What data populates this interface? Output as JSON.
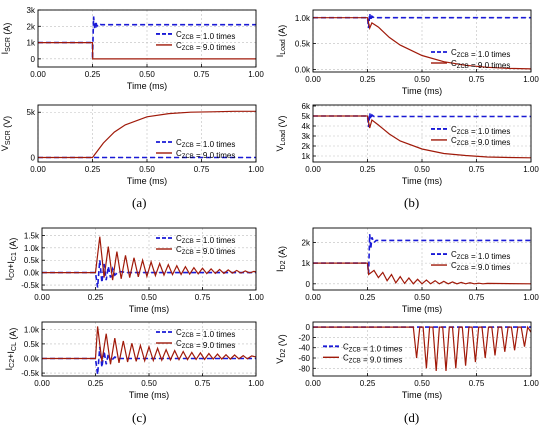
{
  "colors": {
    "dashed": "#1a1ad6",
    "solid": "#a01a0a",
    "axis": "#000000",
    "grid": "#bfbfbf"
  },
  "panel_labels": [
    "(a)",
    "(b)",
    "(c)",
    "(d)"
  ],
  "chart_data": [
    {
      "id": "a-top",
      "type": "line",
      "xlabel": "Time (ms)",
      "ylabel": "I_SCR (A)",
      "xlim": [
        0,
        1
      ],
      "ylim": [
        -0.5,
        3
      ],
      "xticks": [
        "0.00",
        "0.25",
        "0.50",
        "0.75",
        "1.00"
      ],
      "yticks": [
        {
          "v": 0,
          "t": "0"
        },
        {
          "v": 1,
          "t": "1k"
        },
        {
          "v": 2,
          "t": "2k"
        },
        {
          "v": 3,
          "t": "3k"
        }
      ],
      "legend": "right",
      "series": [
        {
          "name": "C_ZCB = 1.0 times",
          "style": "dashed",
          "x": [
            0,
            0.25,
            0.25,
            0.255,
            0.26,
            0.265,
            0.27,
            0.28,
            0.29,
            1
          ],
          "y": [
            1,
            1,
            0,
            2.6,
            1.8,
            2.3,
            2.0,
            2.15,
            2.1,
            2.1
          ]
        },
        {
          "name": "C_ZCB = 9.0 times",
          "style": "solid",
          "x": [
            0,
            0.25,
            0.251,
            1
          ],
          "y": [
            1,
            1,
            0,
            0
          ]
        }
      ]
    },
    {
      "id": "a-bottom",
      "type": "line",
      "xlabel": "Time (ms)",
      "ylabel": "V_SCR (V)",
      "xlim": [
        0,
        1
      ],
      "ylim": [
        -0.5,
        5.8
      ],
      "xticks": [
        "0.00",
        "0.25",
        "0.50",
        "0.75",
        "1.00"
      ],
      "yticks": [
        {
          "v": 0,
          "t": "0"
        },
        {
          "v": 5,
          "t": "5k"
        }
      ],
      "legend": "bottom-right",
      "series": [
        {
          "name": "C_ZCB = 1.0 times",
          "style": "dashed",
          "x": [
            0,
            1
          ],
          "y": [
            0,
            0
          ]
        },
        {
          "name": "C_ZCB = 9.0 times",
          "style": "solid",
          "x": [
            0,
            0.25,
            0.3,
            0.35,
            0.4,
            0.5,
            0.6,
            0.7,
            0.8,
            0.9,
            1
          ],
          "y": [
            0,
            0,
            1.6,
            2.8,
            3.6,
            4.5,
            4.85,
            5.0,
            5.05,
            5.1,
            5.1
          ]
        }
      ]
    },
    {
      "id": "b-top",
      "type": "line",
      "xlabel": "Time (ms)",
      "ylabel": "I_Load (A)",
      "xlim": [
        0,
        1
      ],
      "ylim": [
        -0.05,
        1.15
      ],
      "xticks": [
        "0.00",
        "0.25",
        "0.50",
        "0.75",
        "1.00"
      ],
      "yticks": [
        {
          "v": 0,
          "t": "0.0k"
        },
        {
          "v": 0.5,
          "t": "0.5k"
        },
        {
          "v": 1,
          "t": "1.0k"
        }
      ],
      "legend": "bottom-right",
      "series": [
        {
          "name": "C_ZCB = 1.0 times",
          "style": "dashed",
          "x": [
            0,
            0.25,
            0.255,
            0.26,
            0.265,
            0.27,
            0.28,
            1
          ],
          "y": [
            1,
            1,
            0.8,
            1.08,
            0.95,
            1.03,
            1,
            1
          ]
        },
        {
          "name": "C_ZCB = 9.0 times",
          "style": "solid",
          "x": [
            0,
            0.25,
            0.26,
            0.27,
            0.3,
            0.35,
            0.4,
            0.5,
            0.6,
            0.7,
            0.8,
            0.9,
            1
          ],
          "y": [
            1,
            1,
            0.8,
            0.9,
            0.82,
            0.62,
            0.47,
            0.27,
            0.15,
            0.08,
            0.04,
            0.02,
            0.01
          ]
        }
      ]
    },
    {
      "id": "b-bottom",
      "type": "line",
      "xlabel": "Time (ms)",
      "ylabel": "V_Load (V)",
      "xlim": [
        0,
        1
      ],
      "ylim": [
        0.4,
        6.1
      ],
      "xticks": [
        "0.00",
        "0.25",
        "0.50",
        "0.75",
        "1.00"
      ],
      "yticks": [
        {
          "v": 1,
          "t": "1k"
        },
        {
          "v": 2,
          "t": "2k"
        },
        {
          "v": 3,
          "t": "3k"
        },
        {
          "v": 4,
          "t": "4k"
        },
        {
          "v": 5,
          "t": "5k"
        },
        {
          "v": 6,
          "t": "6k"
        }
      ],
      "legend": "right",
      "series": [
        {
          "name": "C_ZCB = 1.0 times",
          "style": "dashed",
          "x": [
            0,
            0.25,
            0.255,
            0.26,
            0.265,
            0.27,
            0.28,
            1
          ],
          "y": [
            5,
            5,
            3.9,
            5.3,
            4.7,
            5.1,
            4.95,
            4.95
          ]
        },
        {
          "name": "C_ZCB = 9.0 times",
          "style": "solid",
          "x": [
            0,
            0.25,
            0.26,
            0.27,
            0.3,
            0.35,
            0.4,
            0.5,
            0.6,
            0.7,
            0.8,
            0.9,
            1
          ],
          "y": [
            5,
            5,
            3.8,
            4.6,
            4.1,
            3.2,
            2.5,
            1.7,
            1.25,
            1.05,
            0.9,
            0.85,
            0.82
          ]
        }
      ]
    },
    {
      "id": "c-top",
      "type": "line",
      "xlabel": "Time (ms)",
      "ylabel": "I_C0+I_C1 (A)",
      "xlim": [
        0,
        1
      ],
      "ylim": [
        -0.7,
        1.8
      ],
      "xticks": [
        "0.00",
        "0.25",
        "0.50",
        "0.75",
        "1.00"
      ],
      "yticks": [
        {
          "v": -0.5,
          "t": "-0.5k"
        },
        {
          "v": 0,
          "t": "0.0k"
        },
        {
          "v": 0.5,
          "t": "0.5k"
        },
        {
          "v": 1,
          "t": "1.0k"
        },
        {
          "v": 1.5,
          "t": "1.5k"
        }
      ],
      "legend": "top-right",
      "series": [
        {
          "name": "C_ZCB = 1.0 times",
          "style": "dashed",
          "x": [
            0,
            0.25,
            0.26,
            0.27,
            0.28,
            0.29,
            0.3,
            0.31,
            0.32,
            0.33,
            0.34,
            0.36,
            0.4,
            1
          ],
          "y": [
            0,
            0,
            -0.6,
            0.5,
            -0.4,
            0.35,
            -0.3,
            0.25,
            -0.2,
            0.15,
            -0.1,
            0.05,
            0,
            0
          ]
        },
        {
          "name": "C_ZCB = 9.0 times",
          "style": "solid",
          "x": [
            0,
            0.25,
            0.27,
            0.29,
            0.31,
            0.33,
            0.35,
            0.37,
            0.39,
            0.41,
            0.43,
            0.45,
            0.47,
            0.49,
            0.51,
            0.53,
            0.55,
            0.57,
            0.59,
            0.61,
            0.63,
            0.65,
            0.67,
            0.69,
            0.71,
            0.73,
            0.75,
            0.77,
            0.79,
            0.81,
            0.83,
            0.85,
            0.87,
            0.89,
            0.91,
            0.93,
            0.95,
            0.97,
            0.99,
            1
          ],
          "y": [
            0,
            0,
            1.45,
            -0.2,
            1.05,
            -0.3,
            0.85,
            -0.25,
            0.7,
            -0.2,
            0.6,
            -0.17,
            0.5,
            -0.15,
            0.43,
            -0.12,
            0.37,
            -0.1,
            0.32,
            -0.08,
            0.28,
            -0.07,
            0.24,
            -0.06,
            0.2,
            -0.05,
            0.18,
            -0.04,
            0.15,
            -0.03,
            0.13,
            -0.03,
            0.11,
            -0.02,
            0.09,
            -0.02,
            0.07,
            -0.01,
            0.05,
            0.03
          ]
        }
      ]
    },
    {
      "id": "c-bottom",
      "type": "line",
      "xlabel": "Time (ms)",
      "ylabel": "I_C2+I_CL (A)",
      "xlim": [
        0,
        1
      ],
      "ylim": [
        -0.6,
        1.25
      ],
      "xticks": [
        "0.00",
        "0.25",
        "0.50",
        "0.75",
        "1.00"
      ],
      "yticks": [
        {
          "v": -0.5,
          "t": "-0.5k"
        },
        {
          "v": 0,
          "t": "0.0k"
        },
        {
          "v": 0.5,
          "t": "0.5k"
        },
        {
          "v": 1,
          "t": "1.0k"
        }
      ],
      "legend": "top-right",
      "series": [
        {
          "name": "C_ZCB = 1.0 times",
          "style": "dashed",
          "x": [
            0,
            0.25,
            0.26,
            0.27,
            0.28,
            0.29,
            0.3,
            0.31,
            0.32,
            0.34,
            0.36,
            0.4,
            1
          ],
          "y": [
            0,
            0,
            -0.55,
            0.4,
            -0.3,
            0.25,
            -0.2,
            0.15,
            -0.1,
            0.05,
            0,
            0,
            0
          ]
        },
        {
          "name": "C_ZCB = 9.0 times",
          "style": "solid",
          "x": [
            0,
            0.25,
            0.26,
            0.28,
            0.3,
            0.32,
            0.34,
            0.36,
            0.38,
            0.4,
            0.42,
            0.44,
            0.46,
            0.48,
            0.5,
            0.52,
            0.54,
            0.56,
            0.58,
            0.6,
            0.62,
            0.64,
            0.66,
            0.68,
            0.7,
            0.72,
            0.74,
            0.76,
            0.78,
            0.8,
            0.82,
            0.84,
            0.86,
            0.88,
            0.9,
            0.92,
            0.94,
            0.96,
            0.98,
            1
          ],
          "y": [
            0,
            0,
            1.1,
            -0.1,
            0.85,
            -0.2,
            0.7,
            -0.15,
            0.6,
            -0.12,
            0.52,
            -0.1,
            0.45,
            -0.08,
            0.4,
            -0.07,
            0.35,
            -0.06,
            0.3,
            -0.05,
            0.27,
            -0.04,
            0.24,
            -0.04,
            0.21,
            -0.03,
            0.19,
            -0.03,
            0.17,
            -0.02,
            0.15,
            -0.02,
            0.13,
            -0.02,
            0.12,
            -0.01,
            0.1,
            -0.01,
            0.09,
            0.05
          ]
        }
      ]
    },
    {
      "id": "d-top",
      "type": "line",
      "xlabel": "Time (ms)",
      "ylabel": "I_D2 (A)",
      "xlim": [
        0,
        1
      ],
      "ylim": [
        -0.3,
        2.7
      ],
      "xticks": [
        "0.00",
        "0.25",
        "0.50",
        "0.75",
        "1.00"
      ],
      "yticks": [
        {
          "v": 0,
          "t": "0"
        },
        {
          "v": 1,
          "t": "1k"
        },
        {
          "v": 2,
          "t": "2k"
        }
      ],
      "legend": "right",
      "series": [
        {
          "name": "C_ZCB = 1.0 times",
          "style": "dashed",
          "x": [
            0,
            0.25,
            0.255,
            0.26,
            0.265,
            0.27,
            0.28,
            0.29,
            1
          ],
          "y": [
            1,
            1,
            0.5,
            2.4,
            1.7,
            2.25,
            2.0,
            2.1,
            2.1
          ]
        },
        {
          "name": "C_ZCB = 9.0 times",
          "style": "solid",
          "x": [
            0,
            0.25,
            0.255,
            0.28,
            0.3,
            0.32,
            0.34,
            0.36,
            0.38,
            0.4,
            0.42,
            0.44,
            0.46,
            0.48,
            0.5,
            0.52,
            0.54,
            0.56,
            0.58,
            0.6,
            0.62,
            0.64,
            0.66,
            0.68,
            0.7,
            0.72,
            0.74,
            0.76,
            0.78,
            0.8,
            1
          ],
          "y": [
            1,
            1,
            0.45,
            0.65,
            0.3,
            0.55,
            0.15,
            0.45,
            0.05,
            0.35,
            0.02,
            0.28,
            0.0,
            0.22,
            0.0,
            0.18,
            0.0,
            0.15,
            0.0,
            0.12,
            0.0,
            0.09,
            0.0,
            0.07,
            0.0,
            0.05,
            0.0,
            0.03,
            0.0,
            0.02,
            0.0
          ]
        }
      ]
    },
    {
      "id": "d-bottom",
      "type": "line",
      "xlabel": "Time (ms)",
      "ylabel": "V_D2 (V)",
      "xlim": [
        0,
        1
      ],
      "ylim": [
        -95,
        10
      ],
      "xticks": [
        "0.00",
        "0.25",
        "0.50",
        "0.75",
        "1.00"
      ],
      "yticks": [
        {
          "v": -80,
          "t": "-80"
        },
        {
          "v": -60,
          "t": "-60"
        },
        {
          "v": -40,
          "t": "-40"
        },
        {
          "v": -20,
          "t": "-20"
        },
        {
          "v": 0,
          "t": "0"
        }
      ],
      "legend": "left",
      "series": [
        {
          "name": "C_ZCB = 1.0 times",
          "style": "dashed",
          "x": [
            0,
            1
          ],
          "y": [
            0,
            0
          ]
        },
        {
          "name": "C_ZCB = 9.0 times",
          "style": "solid",
          "x": [
            0,
            0.46,
            0.475,
            0.49,
            0.505,
            0.52,
            0.535,
            0.55,
            0.565,
            0.58,
            0.595,
            0.61,
            0.625,
            0.64,
            0.655,
            0.67,
            0.685,
            0.7,
            0.715,
            0.73,
            0.745,
            0.76,
            0.775,
            0.79,
            0.805,
            0.82,
            0.835,
            0.85,
            0.865,
            0.88,
            0.895,
            0.91,
            0.925,
            0.94,
            0.955,
            0.97,
            0.985,
            1
          ],
          "y": [
            0,
            0,
            -60,
            0,
            0,
            -80,
            0,
            0,
            -85,
            0,
            0,
            -85,
            0,
            0,
            -80,
            0,
            0,
            -75,
            0,
            0,
            -68,
            0,
            0,
            -60,
            0,
            0,
            -55,
            0,
            0,
            -48,
            0,
            0,
            -45,
            0,
            0,
            -38,
            0,
            -10
          ]
        }
      ]
    }
  ]
}
